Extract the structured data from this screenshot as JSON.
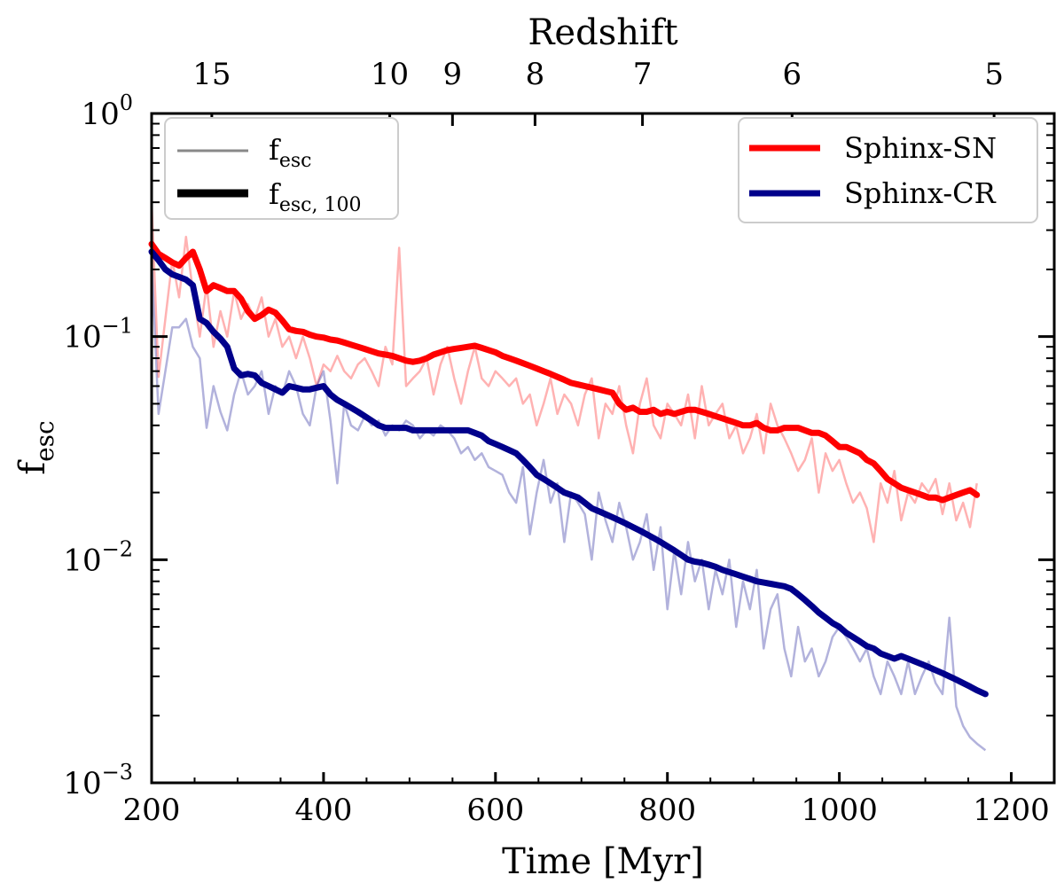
{
  "chart_data": {
    "type": "line",
    "xlabel": "Time [Myr]",
    "ylabel": "f",
    "ylabel_sub": "esc",
    "top_axis_label": "Redshift",
    "xlim": [
      200,
      1250
    ],
    "ylim": [
      0.001,
      1
    ],
    "yscale": "log",
    "x_ticks": [
      {
        "value": 200,
        "label": "200"
      },
      {
        "value": 400,
        "label": "400"
      },
      {
        "value": 600,
        "label": "600"
      },
      {
        "value": 800,
        "label": "800"
      },
      {
        "value": 1000,
        "label": "1000"
      },
      {
        "value": 1200,
        "label": "1200"
      }
    ],
    "y_ticks": [
      {
        "value": 1,
        "base": "10",
        "exp": "0"
      },
      {
        "value": 0.1,
        "base": "10",
        "exp": "−1"
      },
      {
        "value": 0.01,
        "base": "10",
        "exp": "−2"
      },
      {
        "value": 0.001,
        "base": "10",
        "exp": "−3"
      }
    ],
    "top_ticks": [
      {
        "time": 270,
        "label": "15"
      },
      {
        "time": 477,
        "label": "10"
      },
      {
        "time": 550,
        "label": "9"
      },
      {
        "time": 646,
        "label": "8"
      },
      {
        "time": 771,
        "label": "7"
      },
      {
        "time": 945,
        "label": "6"
      },
      {
        "time": 1180,
        "label": "5"
      }
    ],
    "style_legend": [
      {
        "main": "f",
        "sub": "esc",
        "width": "thin"
      },
      {
        "main": "f",
        "sub": "esc, 100",
        "width": "thick"
      }
    ],
    "series": [
      {
        "name": "Sphinx-SN",
        "color": "#ff0000",
        "smoothed_x": [
          200,
          208,
          216,
          224,
          232,
          240,
          248,
          256,
          264,
          272,
          280,
          288,
          296,
          304,
          312,
          320,
          328,
          336,
          344,
          352,
          360,
          368,
          376,
          384,
          392,
          400,
          408,
          416,
          424,
          432,
          440,
          448,
          456,
          464,
          472,
          480,
          488,
          496,
          504,
          512,
          520,
          528,
          536,
          544,
          552,
          560,
          568,
          576,
          584,
          592,
          600,
          608,
          616,
          624,
          632,
          640,
          648,
          656,
          664,
          672,
          680,
          688,
          696,
          704,
          712,
          720,
          728,
          736,
          744,
          752,
          760,
          768,
          776,
          784,
          792,
          800,
          808,
          816,
          824,
          832,
          840,
          848,
          856,
          864,
          872,
          880,
          888,
          896,
          904,
          912,
          920,
          928,
          936,
          944,
          952,
          960,
          968,
          976,
          984,
          992,
          1000,
          1008,
          1016,
          1024,
          1032,
          1040,
          1048,
          1056,
          1064,
          1072,
          1080,
          1088,
          1096,
          1104,
          1112,
          1120,
          1128,
          1136,
          1144,
          1152,
          1160
        ],
        "smoothed_y": [
          0.26,
          0.235,
          0.225,
          0.215,
          0.208,
          0.225,
          0.24,
          0.2,
          0.16,
          0.17,
          0.165,
          0.16,
          0.16,
          0.148,
          0.13,
          0.12,
          0.125,
          0.132,
          0.128,
          0.118,
          0.108,
          0.106,
          0.105,
          0.102,
          0.1,
          0.099,
          0.097,
          0.096,
          0.094,
          0.092,
          0.09,
          0.088,
          0.086,
          0.084,
          0.083,
          0.082,
          0.08,
          0.078,
          0.077,
          0.078,
          0.08,
          0.083,
          0.085,
          0.087,
          0.088,
          0.089,
          0.09,
          0.091,
          0.089,
          0.087,
          0.085,
          0.082,
          0.08,
          0.078,
          0.076,
          0.074,
          0.072,
          0.07,
          0.068,
          0.066,
          0.064,
          0.062,
          0.061,
          0.06,
          0.059,
          0.058,
          0.057,
          0.056,
          0.05,
          0.047,
          0.048,
          0.046,
          0.046,
          0.047,
          0.045,
          0.046,
          0.045,
          0.046,
          0.047,
          0.047,
          0.046,
          0.045,
          0.044,
          0.043,
          0.042,
          0.041,
          0.04,
          0.04,
          0.041,
          0.039,
          0.038,
          0.038,
          0.039,
          0.039,
          0.039,
          0.038,
          0.037,
          0.037,
          0.036,
          0.034,
          0.032,
          0.032,
          0.031,
          0.03,
          0.028,
          0.027,
          0.025,
          0.023,
          0.022,
          0.021,
          0.0205,
          0.02,
          0.0195,
          0.019,
          0.019,
          0.0185,
          0.019,
          0.0195,
          0.02,
          0.0205,
          0.0195
        ],
        "raw_x": [
          200,
          208,
          216,
          224,
          232,
          240,
          248,
          256,
          264,
          272,
          280,
          288,
          296,
          304,
          312,
          320,
          328,
          336,
          344,
          352,
          360,
          368,
          376,
          384,
          392,
          400,
          408,
          416,
          424,
          432,
          440,
          448,
          456,
          464,
          472,
          480,
          488,
          496,
          504,
          512,
          520,
          528,
          536,
          544,
          552,
          560,
          568,
          576,
          584,
          592,
          600,
          608,
          616,
          624,
          632,
          640,
          648,
          656,
          664,
          672,
          680,
          688,
          696,
          704,
          712,
          720,
          728,
          736,
          744,
          752,
          760,
          768,
          776,
          784,
          792,
          800,
          808,
          816,
          824,
          832,
          840,
          848,
          856,
          864,
          872,
          880,
          888,
          896,
          904,
          912,
          920,
          928,
          936,
          944,
          952,
          960,
          968,
          976,
          984,
          992,
          1000,
          1008,
          1016,
          1024,
          1032,
          1040,
          1048,
          1056,
          1064,
          1072,
          1080,
          1088,
          1096,
          1104,
          1112,
          1120,
          1128,
          1136,
          1144,
          1152,
          1160
        ],
        "raw_y": [
          0.4,
          0.066,
          0.12,
          0.22,
          0.15,
          0.28,
          0.16,
          0.1,
          0.17,
          0.09,
          0.13,
          0.1,
          0.16,
          0.12,
          0.14,
          0.12,
          0.15,
          0.1,
          0.12,
          0.09,
          0.1,
          0.08,
          0.1,
          0.08,
          0.06,
          0.075,
          0.07,
          0.082,
          0.07,
          0.065,
          0.075,
          0.08,
          0.07,
          0.06,
          0.09,
          0.075,
          0.25,
          0.06,
          0.065,
          0.07,
          0.08,
          0.055,
          0.075,
          0.09,
          0.065,
          0.05,
          0.07,
          0.09,
          0.065,
          0.06,
          0.07,
          0.065,
          0.06,
          0.065,
          0.05,
          0.055,
          0.04,
          0.05,
          0.065,
          0.045,
          0.055,
          0.05,
          0.04,
          0.055,
          0.065,
          0.035,
          0.05,
          0.045,
          0.06,
          0.04,
          0.03,
          0.05,
          0.065,
          0.04,
          0.035,
          0.05,
          0.045,
          0.04,
          0.055,
          0.035,
          0.06,
          0.04,
          0.045,
          0.05,
          0.035,
          0.04,
          0.03,
          0.035,
          0.045,
          0.03,
          0.05,
          0.04,
          0.035,
          0.03,
          0.025,
          0.028,
          0.035,
          0.02,
          0.03,
          0.025,
          0.028,
          0.022,
          0.018,
          0.02,
          0.017,
          0.012,
          0.022,
          0.018,
          0.025,
          0.015,
          0.02,
          0.018,
          0.022,
          0.02,
          0.023,
          0.016,
          0.022,
          0.015,
          0.018,
          0.014,
          0.022
        ]
      },
      {
        "name": "Sphinx-CR",
        "color": "#00008b",
        "smoothed_x": [
          200,
          208,
          216,
          224,
          232,
          240,
          248,
          256,
          264,
          272,
          280,
          288,
          296,
          304,
          312,
          320,
          328,
          336,
          344,
          352,
          360,
          368,
          376,
          384,
          392,
          400,
          408,
          416,
          424,
          432,
          440,
          448,
          456,
          464,
          472,
          480,
          488,
          496,
          504,
          512,
          520,
          528,
          536,
          544,
          552,
          560,
          568,
          576,
          584,
          592,
          600,
          608,
          616,
          624,
          632,
          640,
          648,
          656,
          664,
          672,
          680,
          688,
          696,
          704,
          712,
          720,
          728,
          736,
          744,
          752,
          760,
          768,
          776,
          784,
          792,
          800,
          808,
          816,
          824,
          832,
          840,
          848,
          856,
          864,
          872,
          880,
          888,
          896,
          904,
          912,
          920,
          928,
          936,
          944,
          952,
          960,
          968,
          976,
          984,
          992,
          1000,
          1008,
          1016,
          1024,
          1032,
          1040,
          1048,
          1056,
          1064,
          1072,
          1080,
          1088,
          1096,
          1104,
          1112,
          1120,
          1128,
          1136,
          1144,
          1152,
          1160,
          1170
        ],
        "smoothed_y": [
          0.24,
          0.22,
          0.2,
          0.19,
          0.185,
          0.18,
          0.17,
          0.12,
          0.115,
          0.105,
          0.098,
          0.09,
          0.072,
          0.067,
          0.068,
          0.067,
          0.062,
          0.06,
          0.058,
          0.056,
          0.06,
          0.059,
          0.058,
          0.058,
          0.059,
          0.06,
          0.055,
          0.052,
          0.05,
          0.048,
          0.046,
          0.044,
          0.042,
          0.04,
          0.039,
          0.039,
          0.039,
          0.039,
          0.038,
          0.038,
          0.038,
          0.038,
          0.038,
          0.038,
          0.038,
          0.038,
          0.038,
          0.037,
          0.036,
          0.034,
          0.033,
          0.032,
          0.031,
          0.03,
          0.028,
          0.026,
          0.024,
          0.023,
          0.022,
          0.021,
          0.02,
          0.0195,
          0.019,
          0.018,
          0.017,
          0.0165,
          0.016,
          0.0155,
          0.015,
          0.0145,
          0.014,
          0.0135,
          0.013,
          0.0125,
          0.012,
          0.0115,
          0.011,
          0.0105,
          0.01,
          0.0098,
          0.0097,
          0.0095,
          0.0093,
          0.009,
          0.0088,
          0.0086,
          0.0084,
          0.0082,
          0.008,
          0.0079,
          0.0078,
          0.0077,
          0.0076,
          0.0074,
          0.007,
          0.0066,
          0.0062,
          0.0058,
          0.0055,
          0.0052,
          0.005,
          0.0047,
          0.0045,
          0.0043,
          0.0041,
          0.004,
          0.0038,
          0.0037,
          0.0036,
          0.0037,
          0.0036,
          0.0035,
          0.0034,
          0.0033,
          0.0032,
          0.0031,
          0.003,
          0.0029,
          0.0028,
          0.0027,
          0.0026,
          0.0025
        ],
        "raw_x": [
          200,
          208,
          216,
          224,
          232,
          240,
          248,
          256,
          264,
          272,
          280,
          288,
          296,
          304,
          312,
          320,
          328,
          336,
          344,
          352,
          360,
          368,
          376,
          384,
          392,
          400,
          408,
          416,
          424,
          432,
          440,
          448,
          456,
          464,
          472,
          480,
          488,
          496,
          504,
          512,
          520,
          528,
          536,
          544,
          552,
          560,
          568,
          576,
          584,
          592,
          600,
          608,
          616,
          624,
          632,
          640,
          648,
          656,
          664,
          672,
          680,
          688,
          696,
          704,
          712,
          720,
          728,
          736,
          744,
          752,
          760,
          768,
          776,
          784,
          792,
          800,
          808,
          816,
          824,
          832,
          840,
          848,
          856,
          864,
          872,
          880,
          888,
          896,
          904,
          912,
          920,
          928,
          936,
          944,
          952,
          960,
          968,
          976,
          984,
          992,
          1000,
          1008,
          1016,
          1024,
          1032,
          1040,
          1048,
          1056,
          1064,
          1072,
          1080,
          1088,
          1096,
          1104,
          1112,
          1120,
          1128,
          1136,
          1144,
          1152,
          1160,
          1170
        ],
        "raw_y": [
          0.22,
          0.045,
          0.07,
          0.11,
          0.11,
          0.12,
          0.09,
          0.08,
          0.039,
          0.06,
          0.046,
          0.038,
          0.055,
          0.07,
          0.055,
          0.06,
          0.07,
          0.045,
          0.06,
          0.055,
          0.07,
          0.06,
          0.045,
          0.04,
          0.06,
          0.07,
          0.042,
          0.022,
          0.05,
          0.04,
          0.038,
          0.044,
          0.04,
          0.042,
          0.036,
          0.04,
          0.038,
          0.042,
          0.04,
          0.035,
          0.038,
          0.036,
          0.04,
          0.038,
          0.035,
          0.03,
          0.032,
          0.028,
          0.03,
          0.026,
          0.025,
          0.024,
          0.02,
          0.018,
          0.026,
          0.013,
          0.02,
          0.028,
          0.018,
          0.022,
          0.012,
          0.02,
          0.018,
          0.016,
          0.01,
          0.02,
          0.015,
          0.012,
          0.018,
          0.014,
          0.01,
          0.012,
          0.016,
          0.009,
          0.014,
          0.006,
          0.011,
          0.007,
          0.012,
          0.008,
          0.01,
          0.006,
          0.009,
          0.007,
          0.01,
          0.005,
          0.008,
          0.006,
          0.009,
          0.004,
          0.006,
          0.007,
          0.004,
          0.003,
          0.005,
          0.0035,
          0.004,
          0.003,
          0.0035,
          0.0045,
          0.005,
          0.0045,
          0.004,
          0.0035,
          0.004,
          0.003,
          0.0025,
          0.0035,
          0.003,
          0.0025,
          0.0035,
          0.0025,
          0.003,
          0.0035,
          0.0028,
          0.0025,
          0.0055,
          0.0022,
          0.0018,
          0.0016,
          0.0015,
          0.0014
        ]
      }
    ]
  }
}
